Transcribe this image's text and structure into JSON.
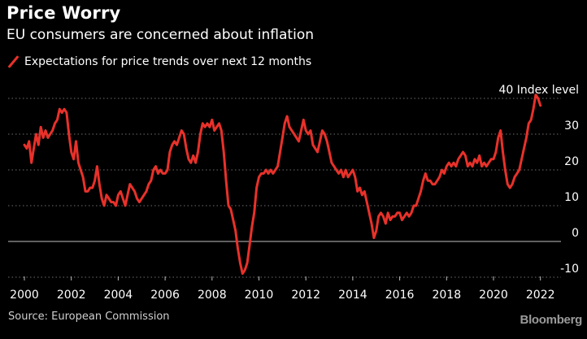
{
  "header": {
    "title": "Price Worry",
    "subtitle": "EU consumers are concerned about inflation"
  },
  "legend": {
    "label": "Expectations for price trends over next 12 months",
    "color": "#e8312a"
  },
  "footer": {
    "source": "Source: European Commission",
    "brand": "Bloomberg"
  },
  "chart_data": {
    "type": "line",
    "title": "Price Worry",
    "subtitle": "EU consumers are concerned about inflation",
    "xlabel": "",
    "ylabel": "Index level",
    "ylim": [
      -10,
      40
    ],
    "xlim": [
      2000,
      2022.5
    ],
    "grid": true,
    "legend_position": "top-left",
    "y_ticks": [
      {
        "value": 40,
        "label": "40 Index level"
      },
      {
        "value": 30,
        "label": "30"
      },
      {
        "value": 20,
        "label": "20"
      },
      {
        "value": 10,
        "label": "10"
      },
      {
        "value": 0,
        "label": "0"
      },
      {
        "value": -10,
        "label": "-10"
      }
    ],
    "x_ticks": [
      {
        "value": 2000,
        "label": "2000"
      },
      {
        "value": 2002,
        "label": "2002"
      },
      {
        "value": 2004,
        "label": "2004"
      },
      {
        "value": 2006,
        "label": "2006"
      },
      {
        "value": 2008,
        "label": "2008"
      },
      {
        "value": 2010,
        "label": "2010"
      },
      {
        "value": 2012,
        "label": "2012"
      },
      {
        "value": 2014,
        "label": "2014"
      },
      {
        "value": 2016,
        "label": "2016"
      },
      {
        "value": 2018,
        "label": "2018"
      },
      {
        "value": 2020,
        "label": "2020"
      },
      {
        "value": 2022,
        "label": "2022"
      }
    ],
    "series": [
      {
        "name": "Expectations for price trends over next 12 months",
        "color": "#e8312a",
        "points": [
          [
            2000.0,
            27
          ],
          [
            2000.1,
            26
          ],
          [
            2000.2,
            28
          ],
          [
            2000.3,
            22
          ],
          [
            2000.4,
            26
          ],
          [
            2000.5,
            30
          ],
          [
            2000.6,
            27
          ],
          [
            2000.7,
            32
          ],
          [
            2000.8,
            29
          ],
          [
            2000.9,
            31
          ],
          [
            2001.0,
            29
          ],
          [
            2001.1,
            30
          ],
          [
            2001.2,
            31
          ],
          [
            2001.3,
            33
          ],
          [
            2001.4,
            34
          ],
          [
            2001.5,
            37
          ],
          [
            2001.6,
            36
          ],
          [
            2001.7,
            37
          ],
          [
            2001.8,
            36
          ],
          [
            2001.9,
            30
          ],
          [
            2002.0,
            25
          ],
          [
            2002.1,
            23
          ],
          [
            2002.2,
            28
          ],
          [
            2002.3,
            22
          ],
          [
            2002.4,
            20
          ],
          [
            2002.5,
            18
          ],
          [
            2002.6,
            14
          ],
          [
            2002.7,
            14
          ],
          [
            2002.8,
            15
          ],
          [
            2002.9,
            15
          ],
          [
            2003.0,
            17
          ],
          [
            2003.1,
            21
          ],
          [
            2003.2,
            16
          ],
          [
            2003.3,
            12
          ],
          [
            2003.4,
            10
          ],
          [
            2003.5,
            13
          ],
          [
            2003.6,
            12
          ],
          [
            2003.7,
            11
          ],
          [
            2003.8,
            11
          ],
          [
            2003.9,
            10
          ],
          [
            2004.0,
            13
          ],
          [
            2004.1,
            14
          ],
          [
            2004.2,
            12
          ],
          [
            2004.3,
            10
          ],
          [
            2004.4,
            13
          ],
          [
            2004.5,
            16
          ],
          [
            2004.6,
            15
          ],
          [
            2004.7,
            14
          ],
          [
            2004.8,
            12
          ],
          [
            2004.9,
            11
          ],
          [
            2005.0,
            12
          ],
          [
            2005.1,
            13
          ],
          [
            2005.2,
            14
          ],
          [
            2005.3,
            16
          ],
          [
            2005.4,
            17
          ],
          [
            2005.5,
            20
          ],
          [
            2005.6,
            21
          ],
          [
            2005.7,
            19
          ],
          [
            2005.8,
            20
          ],
          [
            2005.9,
            19
          ],
          [
            2006.0,
            19
          ],
          [
            2006.1,
            20
          ],
          [
            2006.2,
            25
          ],
          [
            2006.3,
            27
          ],
          [
            2006.4,
            28
          ],
          [
            2006.5,
            27
          ],
          [
            2006.6,
            29
          ],
          [
            2006.7,
            31
          ],
          [
            2006.8,
            30
          ],
          [
            2006.9,
            26
          ],
          [
            2007.0,
            23
          ],
          [
            2007.1,
            22
          ],
          [
            2007.2,
            24
          ],
          [
            2007.3,
            22
          ],
          [
            2007.4,
            25
          ],
          [
            2007.5,
            30
          ],
          [
            2007.6,
            33
          ],
          [
            2007.7,
            32
          ],
          [
            2007.8,
            33
          ],
          [
            2007.9,
            32
          ],
          [
            2008.0,
            34
          ],
          [
            2008.1,
            31
          ],
          [
            2008.2,
            32
          ],
          [
            2008.3,
            33
          ],
          [
            2008.4,
            31
          ],
          [
            2008.5,
            25
          ],
          [
            2008.6,
            17
          ],
          [
            2008.7,
            10
          ],
          [
            2008.8,
            9
          ],
          [
            2008.9,
            6
          ],
          [
            2009.0,
            3
          ],
          [
            2009.1,
            -2
          ],
          [
            2009.2,
            -6
          ],
          [
            2009.3,
            -9
          ],
          [
            2009.4,
            -8
          ],
          [
            2009.5,
            -6
          ],
          [
            2009.6,
            -1
          ],
          [
            2009.7,
            4
          ],
          [
            2009.8,
            8
          ],
          [
            2009.9,
            15
          ],
          [
            2010.0,
            18
          ],
          [
            2010.1,
            19
          ],
          [
            2010.2,
            19
          ],
          [
            2010.3,
            20
          ],
          [
            2010.4,
            19
          ],
          [
            2010.5,
            20
          ],
          [
            2010.6,
            19
          ],
          [
            2010.7,
            20
          ],
          [
            2010.8,
            21
          ],
          [
            2010.9,
            25
          ],
          [
            2011.0,
            29
          ],
          [
            2011.1,
            33
          ],
          [
            2011.2,
            35
          ],
          [
            2011.3,
            32
          ],
          [
            2011.4,
            31
          ],
          [
            2011.5,
            30
          ],
          [
            2011.6,
            29
          ],
          [
            2011.7,
            28
          ],
          [
            2011.8,
            31
          ],
          [
            2011.9,
            34
          ],
          [
            2012.0,
            31
          ],
          [
            2012.1,
            30
          ],
          [
            2012.2,
            31
          ],
          [
            2012.3,
            27
          ],
          [
            2012.4,
            26
          ],
          [
            2012.5,
            25
          ],
          [
            2012.6,
            28
          ],
          [
            2012.7,
            31
          ],
          [
            2012.8,
            30
          ],
          [
            2012.9,
            28
          ],
          [
            2013.0,
            25
          ],
          [
            2013.1,
            22
          ],
          [
            2013.2,
            21
          ],
          [
            2013.3,
            20
          ],
          [
            2013.4,
            19
          ],
          [
            2013.5,
            20
          ],
          [
            2013.6,
            18
          ],
          [
            2013.7,
            20
          ],
          [
            2013.8,
            18
          ],
          [
            2013.9,
            19
          ],
          [
            2014.0,
            20
          ],
          [
            2014.1,
            18
          ],
          [
            2014.2,
            14
          ],
          [
            2014.3,
            15
          ],
          [
            2014.4,
            13
          ],
          [
            2014.5,
            14
          ],
          [
            2014.6,
            11
          ],
          [
            2014.7,
            8
          ],
          [
            2014.8,
            5
          ],
          [
            2014.9,
            1
          ],
          [
            2015.0,
            3
          ],
          [
            2015.1,
            7
          ],
          [
            2015.2,
            8
          ],
          [
            2015.3,
            7
          ],
          [
            2015.4,
            5
          ],
          [
            2015.5,
            8
          ],
          [
            2015.6,
            6
          ],
          [
            2015.7,
            7
          ],
          [
            2015.8,
            7
          ],
          [
            2015.9,
            8
          ],
          [
            2016.0,
            8
          ],
          [
            2016.1,
            6
          ],
          [
            2016.2,
            7
          ],
          [
            2016.3,
            8
          ],
          [
            2016.4,
            7
          ],
          [
            2016.5,
            8
          ],
          [
            2016.6,
            10
          ],
          [
            2016.7,
            10
          ],
          [
            2016.8,
            12
          ],
          [
            2016.9,
            14
          ],
          [
            2017.0,
            17
          ],
          [
            2017.1,
            19
          ],
          [
            2017.2,
            17
          ],
          [
            2017.3,
            17
          ],
          [
            2017.4,
            16
          ],
          [
            2017.5,
            16
          ],
          [
            2017.6,
            17
          ],
          [
            2017.7,
            18
          ],
          [
            2017.8,
            20
          ],
          [
            2017.9,
            19
          ],
          [
            2018.0,
            21
          ],
          [
            2018.1,
            22
          ],
          [
            2018.2,
            21
          ],
          [
            2018.3,
            22
          ],
          [
            2018.4,
            21
          ],
          [
            2018.5,
            23
          ],
          [
            2018.6,
            24
          ],
          [
            2018.7,
            25
          ],
          [
            2018.8,
            24
          ],
          [
            2018.9,
            21
          ],
          [
            2019.0,
            22
          ],
          [
            2019.1,
            21
          ],
          [
            2019.2,
            23
          ],
          [
            2019.3,
            22
          ],
          [
            2019.4,
            24
          ],
          [
            2019.5,
            21
          ],
          [
            2019.6,
            22
          ],
          [
            2019.7,
            21
          ],
          [
            2019.8,
            22
          ],
          [
            2019.9,
            23
          ],
          [
            2020.0,
            23
          ],
          [
            2020.1,
            25
          ],
          [
            2020.2,
            29
          ],
          [
            2020.3,
            31
          ],
          [
            2020.4,
            25
          ],
          [
            2020.5,
            20
          ],
          [
            2020.6,
            16
          ],
          [
            2020.7,
            15
          ],
          [
            2020.8,
            16
          ],
          [
            2020.9,
            18
          ],
          [
            2021.0,
            19
          ],
          [
            2021.1,
            20
          ],
          [
            2021.2,
            23
          ],
          [
            2021.3,
            26
          ],
          [
            2021.4,
            29
          ],
          [
            2021.5,
            33
          ],
          [
            2021.6,
            34
          ],
          [
            2021.7,
            37
          ],
          [
            2021.8,
            41
          ],
          [
            2021.9,
            40
          ],
          [
            2022.0,
            38
          ]
        ]
      }
    ]
  }
}
